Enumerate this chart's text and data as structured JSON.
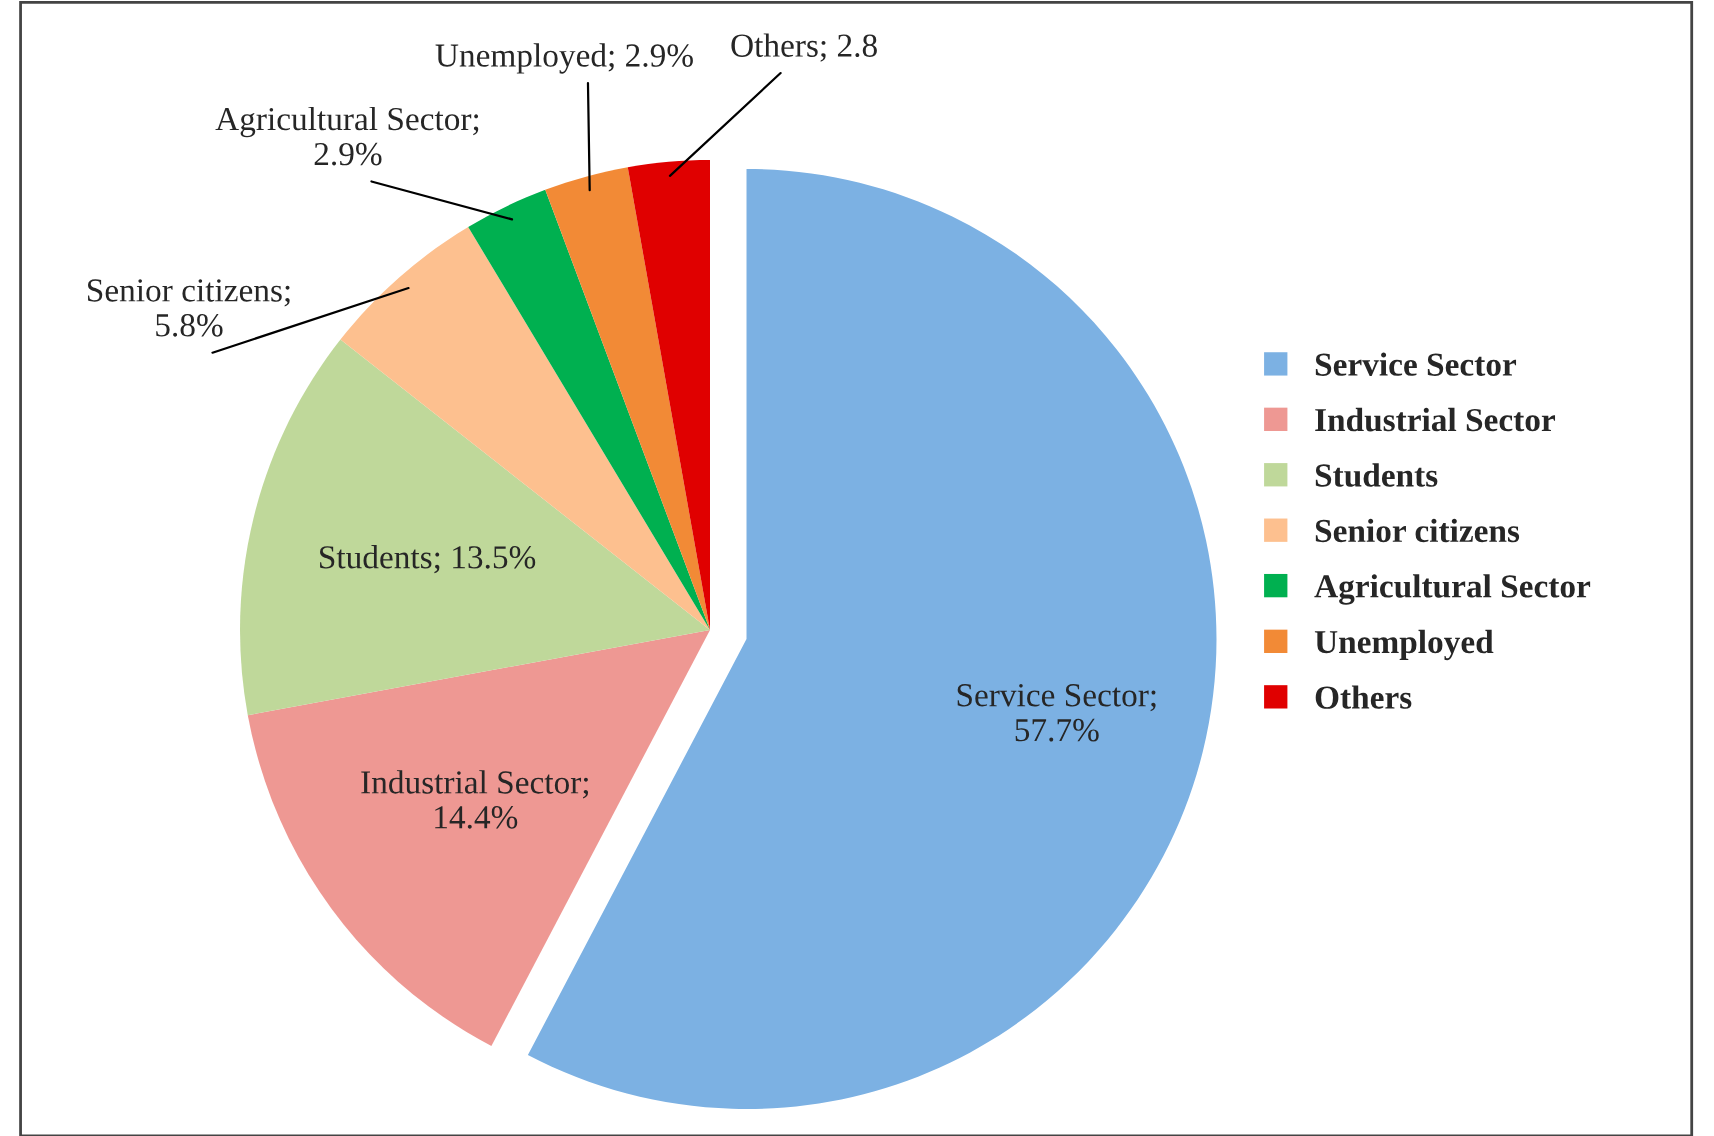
{
  "chart_data": {
    "type": "pie",
    "categories": [
      "Service Sector",
      "Industrial Sector",
      "Students",
      "Senior citizens",
      "Agricultural Sector",
      "Unemployed",
      "Others"
    ],
    "values": [
      57.7,
      14.4,
      13.5,
      5.8,
      2.9,
      2.9,
      2.8
    ],
    "value_labels": [
      "Service Sector; 57.7%",
      "Industrial Sector; 14.4%",
      "Students; 13.5%",
      "Senior citizens; 5.8%",
      "Agricultural Sector; 2.9%",
      "Unemployed; 2.9%",
      "Others; 2.8"
    ],
    "colors": [
      "#7cb1e3",
      "#ee9893",
      "#bfd89a",
      "#fdc08f",
      "#00b050",
      "#f28a36",
      "#e00000"
    ],
    "legend": "right"
  }
}
